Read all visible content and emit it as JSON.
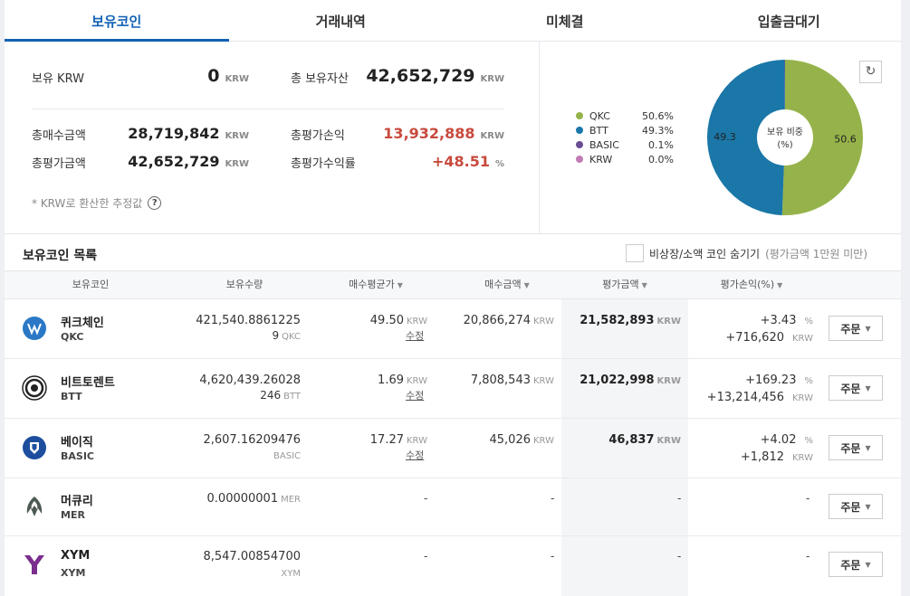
{
  "tabs": [
    "보유코인",
    "거래내역",
    "미체결",
    "입출금대기"
  ],
  "summary": {
    "krw_label": "보유 KRW",
    "krw_value": "0",
    "krw_unit": "KRW",
    "total_assets_label": "총 보유자산",
    "total_assets_value": "42,652,729",
    "total_assets_unit": "KRW",
    "buy_total_label": "총매수금액",
    "buy_total_value": "28,719,842",
    "buy_total_unit": "KRW",
    "pnl_label": "총평가손익",
    "pnl_value": "13,932,888",
    "pnl_unit": "KRW",
    "eval_total_label": "총평가금액",
    "eval_total_value": "42,652,729",
    "eval_total_unit": "KRW",
    "return_label": "총평가수익률",
    "return_value": "+48.51",
    "return_unit": "%",
    "note": "* KRW로 환산한 추정값",
    "help": "?"
  },
  "chart_data": {
    "type": "pie",
    "center_label_1": "보유 비중",
    "center_label_2": "(%)",
    "slices": [
      {
        "name": "QKC",
        "value": 50.6,
        "label": "50.6%",
        "color": "#95b34a"
      },
      {
        "name": "BTT",
        "value": 49.3,
        "label": "49.3%",
        "color": "#1a77a8"
      },
      {
        "name": "BASIC",
        "value": 0.1,
        "label": "0.1%",
        "color": "#6a4c93"
      },
      {
        "name": "KRW",
        "value": 0.0,
        "label": "0.0%",
        "color": "#c27bb4"
      }
    ],
    "slice_labels": [
      "50.6",
      "49.3"
    ]
  },
  "list": {
    "title": "보유코인 목록",
    "hide_label": "비상장/소액 코인 숨기기",
    "hide_sub": "(평가금액 1만원 미만)",
    "headers": [
      "보유코인",
      "보유수량",
      "매수평균가",
      "매수금액",
      "평가금액",
      "평가손익(%)"
    ],
    "rows": [
      {
        "name": "퀴크체인",
        "symbol": "QKC",
        "qty": "421,540.8861225",
        "qty_sub": "9",
        "qty_unit": "QKC",
        "avg": "49.50",
        "avg_unit": "KRW",
        "edit": "수정",
        "buy": "20,866,274",
        "buy_unit": "KRW",
        "eval": "21,582,893",
        "eval_unit": "KRW",
        "pct": "+3.43",
        "pct_unit": "%",
        "pnl": "+716,620",
        "pnl_unit": "KRW",
        "order": "주문"
      },
      {
        "name": "비트토렌트",
        "symbol": "BTT",
        "qty": "4,620,439.26028",
        "qty_sub": "246",
        "qty_unit": "BTT",
        "avg": "1.69",
        "avg_unit": "KRW",
        "edit": "수정",
        "buy": "7,808,543",
        "buy_unit": "KRW",
        "eval": "21,022,998",
        "eval_unit": "KRW",
        "pct": "+169.23",
        "pct_unit": "%",
        "pnl": "+13,214,456",
        "pnl_unit": "KRW",
        "order": "주문"
      },
      {
        "name": "베이직",
        "symbol": "BASIC",
        "qty": "2,607.16209476",
        "qty_sub": "",
        "qty_unit": "BASIC",
        "avg": "17.27",
        "avg_unit": "KRW",
        "edit": "수정",
        "buy": "45,026",
        "buy_unit": "KRW",
        "eval": "46,837",
        "eval_unit": "KRW",
        "pct": "+4.02",
        "pct_unit": "%",
        "pnl": "+1,812",
        "pnl_unit": "KRW",
        "order": "주문"
      },
      {
        "name": "머큐리",
        "symbol": "MER",
        "qty": "0.00000001",
        "qty_unit": "MER",
        "dash": "-",
        "order": "주문"
      },
      {
        "name": "XYM",
        "symbol": "XYM",
        "qty": "8,547.00854700",
        "qty_unit": "XYM",
        "dash": "-",
        "order": "주문"
      }
    ]
  }
}
